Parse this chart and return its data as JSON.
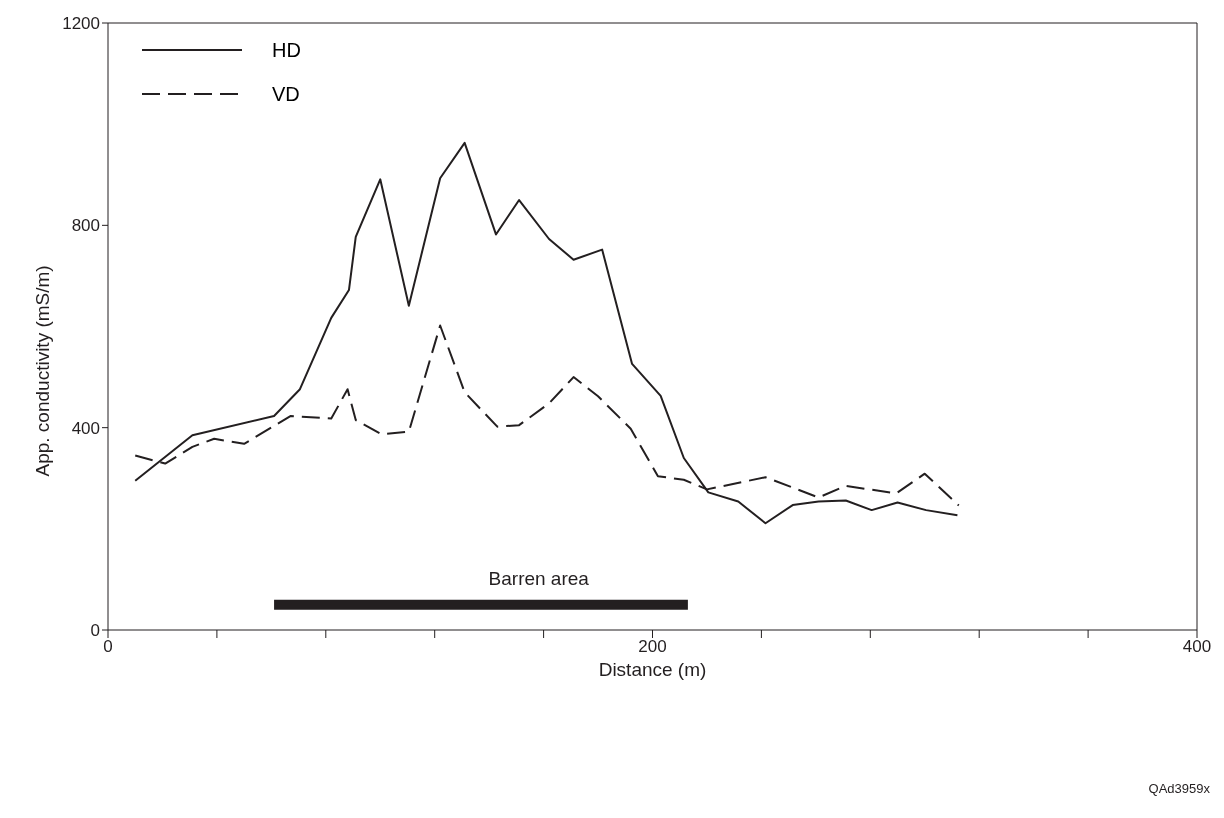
{
  "chart_data": {
    "type": "line",
    "xlabel": "Distance (m)",
    "ylabel": "App. conductivity (mS/m)",
    "series": [
      {
        "name": "HD",
        "color": "#231f20",
        "line_style": "solid",
        "x": [
          10,
          31,
          61,
          70.5,
          82,
          88.5,
          91,
          100,
          110.5,
          122,
          131,
          142.5,
          151,
          162,
          171,
          181.5,
          192.5,
          203,
          211.5,
          220.5,
          231.5,
          241.5,
          251.5,
          261,
          271,
          280.5,
          290,
          300.5,
          312
        ],
        "values": [
          295,
          385,
          423,
          476,
          617,
          672,
          777,
          891,
          641,
          893,
          963,
          782,
          850,
          773,
          732,
          752,
          526,
          463,
          340,
          272,
          254,
          211,
          247,
          254,
          256,
          237,
          252,
          237,
          227
        ]
      },
      {
        "name": "VD",
        "color": "#231f20",
        "line_style": "dashed",
        "x": [
          10,
          21,
          31,
          39,
          50,
          67,
          82,
          88,
          91,
          100.5,
          110.5,
          122,
          131,
          143,
          151,
          162,
          171,
          180,
          192,
          202,
          211.5,
          220,
          241.5,
          261,
          271,
          289.5,
          300,
          312.5
        ],
        "values": [
          345,
          329,
          362,
          378,
          368,
          423,
          418,
          476,
          415,
          387,
          392,
          602,
          470,
          402,
          405,
          448,
          500,
          462,
          398,
          304,
          297,
          278,
          302,
          262,
          285,
          270,
          309,
          246
        ]
      },
      {
        "name": "Barren area",
        "type": "line",
        "color": "#231f20",
        "line_style": "solid",
        "x": [
          61,
          213
        ],
        "values": [
          50,
          50
        ]
      }
    ],
    "xlim": [
      0,
      400
    ],
    "xticks": [
      0,
      {
        "value": 40,
        "label": null
      },
      {
        "value": 80,
        "label": null
      },
      {
        "value": 120,
        "label": null
      },
      {
        "value": 160,
        "label": null
      },
      200,
      {
        "value": 240,
        "label": null
      },
      {
        "value": 280,
        "label": null
      },
      {
        "value": 320,
        "label": null
      },
      {
        "value": 360,
        "label": null
      },
      400
    ],
    "ylim": [
      0,
      1200
    ],
    "yticks": [
      0,
      400,
      800,
      1200
    ],
    "grid": false,
    "legend": "top left",
    "marker": "none",
    "annotations": [
      "QAd3959x"
    ]
  }
}
